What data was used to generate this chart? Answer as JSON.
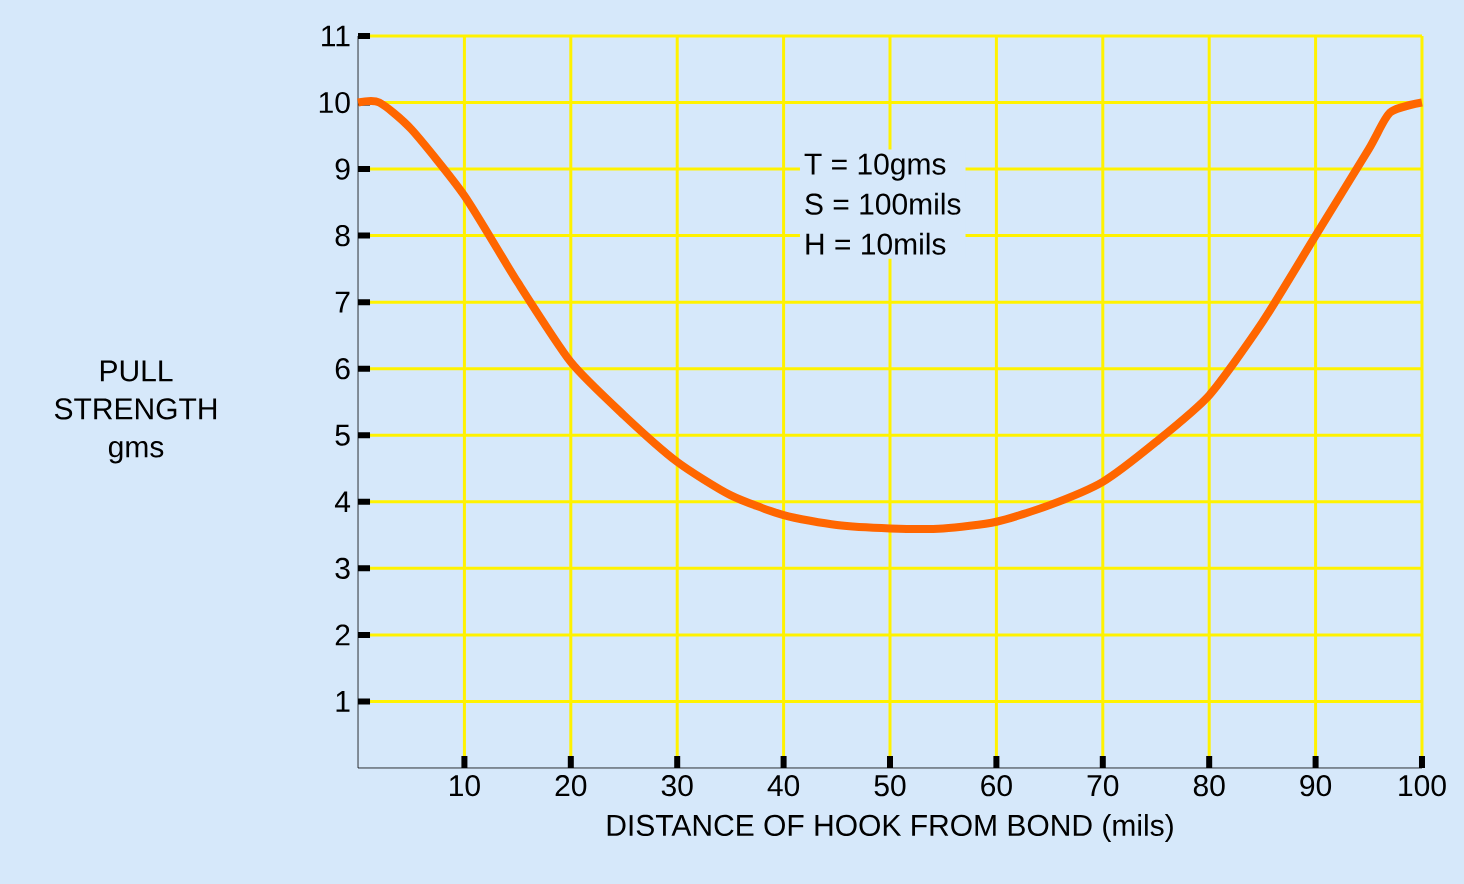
{
  "chart_data": {
    "type": "line",
    "xlabel": "DISTANCE OF HOOK FROM BOND (mils)",
    "ylabel": "PULL STRENGTH gms",
    "annotations": [
      "T = 10gms",
      "S = 100mils",
      "H = 10mils"
    ],
    "x": [
      0,
      2,
      5,
      10,
      15,
      20,
      25,
      30,
      35,
      40,
      45,
      50,
      55,
      60,
      65,
      70,
      75,
      80,
      85,
      90,
      95,
      97,
      100
    ],
    "series": [
      {
        "color": "#ff6600",
        "values": [
          10,
          10,
          9.6,
          8.6,
          7.3,
          6.1,
          5.3,
          4.6,
          4.1,
          3.8,
          3.65,
          3.6,
          3.6,
          3.7,
          3.95,
          4.3,
          4.9,
          5.6,
          6.7,
          8.0,
          9.3,
          9.85,
          10
        ]
      }
    ],
    "xlim": [
      0,
      100
    ],
    "ylim": [
      0,
      11
    ],
    "xticks": [
      10,
      20,
      30,
      40,
      50,
      60,
      70,
      80,
      90,
      100
    ],
    "yticks": [
      1,
      2,
      3,
      4,
      5,
      6,
      7,
      8,
      9,
      10,
      11
    ],
    "grid": true,
    "marker": "none",
    "line_style": "solid"
  }
}
